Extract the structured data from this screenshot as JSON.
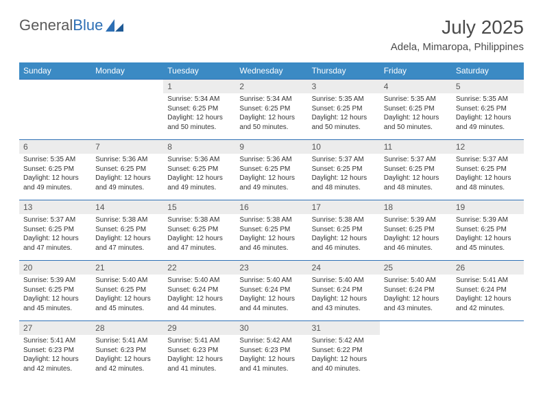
{
  "brand": {
    "part1": "General",
    "part2": "Blue"
  },
  "title": "July 2025",
  "location": "Adela, Mimaropa, Philippines",
  "colors": {
    "header_bg": "#3b8ac4",
    "header_text": "#ffffff",
    "cell_border": "#2d6fb5",
    "daynum_bg": "#ececec",
    "daynum_text": "#555555",
    "body_text": "#333333",
    "logo_gray": "#5a5a5a",
    "logo_blue": "#2d6fb5",
    "background": "#ffffff"
  },
  "fonts": {
    "month_title_pt": 28,
    "location_pt": 15,
    "weekday_pt": 12,
    "daynum_pt": 12,
    "cell_pt": 10
  },
  "weekdays": [
    "Sunday",
    "Monday",
    "Tuesday",
    "Wednesday",
    "Thursday",
    "Friday",
    "Saturday"
  ],
  "weeks": [
    [
      null,
      null,
      {
        "n": "1",
        "sr": "Sunrise: 5:34 AM",
        "ss": "Sunset: 6:25 PM",
        "d1": "Daylight: 12 hours",
        "d2": "and 50 minutes."
      },
      {
        "n": "2",
        "sr": "Sunrise: 5:34 AM",
        "ss": "Sunset: 6:25 PM",
        "d1": "Daylight: 12 hours",
        "d2": "and 50 minutes."
      },
      {
        "n": "3",
        "sr": "Sunrise: 5:35 AM",
        "ss": "Sunset: 6:25 PM",
        "d1": "Daylight: 12 hours",
        "d2": "and 50 minutes."
      },
      {
        "n": "4",
        "sr": "Sunrise: 5:35 AM",
        "ss": "Sunset: 6:25 PM",
        "d1": "Daylight: 12 hours",
        "d2": "and 50 minutes."
      },
      {
        "n": "5",
        "sr": "Sunrise: 5:35 AM",
        "ss": "Sunset: 6:25 PM",
        "d1": "Daylight: 12 hours",
        "d2": "and 49 minutes."
      }
    ],
    [
      {
        "n": "6",
        "sr": "Sunrise: 5:35 AM",
        "ss": "Sunset: 6:25 PM",
        "d1": "Daylight: 12 hours",
        "d2": "and 49 minutes."
      },
      {
        "n": "7",
        "sr": "Sunrise: 5:36 AM",
        "ss": "Sunset: 6:25 PM",
        "d1": "Daylight: 12 hours",
        "d2": "and 49 minutes."
      },
      {
        "n": "8",
        "sr": "Sunrise: 5:36 AM",
        "ss": "Sunset: 6:25 PM",
        "d1": "Daylight: 12 hours",
        "d2": "and 49 minutes."
      },
      {
        "n": "9",
        "sr": "Sunrise: 5:36 AM",
        "ss": "Sunset: 6:25 PM",
        "d1": "Daylight: 12 hours",
        "d2": "and 49 minutes."
      },
      {
        "n": "10",
        "sr": "Sunrise: 5:37 AM",
        "ss": "Sunset: 6:25 PM",
        "d1": "Daylight: 12 hours",
        "d2": "and 48 minutes."
      },
      {
        "n": "11",
        "sr": "Sunrise: 5:37 AM",
        "ss": "Sunset: 6:25 PM",
        "d1": "Daylight: 12 hours",
        "d2": "and 48 minutes."
      },
      {
        "n": "12",
        "sr": "Sunrise: 5:37 AM",
        "ss": "Sunset: 6:25 PM",
        "d1": "Daylight: 12 hours",
        "d2": "and 48 minutes."
      }
    ],
    [
      {
        "n": "13",
        "sr": "Sunrise: 5:37 AM",
        "ss": "Sunset: 6:25 PM",
        "d1": "Daylight: 12 hours",
        "d2": "and 47 minutes."
      },
      {
        "n": "14",
        "sr": "Sunrise: 5:38 AM",
        "ss": "Sunset: 6:25 PM",
        "d1": "Daylight: 12 hours",
        "d2": "and 47 minutes."
      },
      {
        "n": "15",
        "sr": "Sunrise: 5:38 AM",
        "ss": "Sunset: 6:25 PM",
        "d1": "Daylight: 12 hours",
        "d2": "and 47 minutes."
      },
      {
        "n": "16",
        "sr": "Sunrise: 5:38 AM",
        "ss": "Sunset: 6:25 PM",
        "d1": "Daylight: 12 hours",
        "d2": "and 46 minutes."
      },
      {
        "n": "17",
        "sr": "Sunrise: 5:38 AM",
        "ss": "Sunset: 6:25 PM",
        "d1": "Daylight: 12 hours",
        "d2": "and 46 minutes."
      },
      {
        "n": "18",
        "sr": "Sunrise: 5:39 AM",
        "ss": "Sunset: 6:25 PM",
        "d1": "Daylight: 12 hours",
        "d2": "and 46 minutes."
      },
      {
        "n": "19",
        "sr": "Sunrise: 5:39 AM",
        "ss": "Sunset: 6:25 PM",
        "d1": "Daylight: 12 hours",
        "d2": "and 45 minutes."
      }
    ],
    [
      {
        "n": "20",
        "sr": "Sunrise: 5:39 AM",
        "ss": "Sunset: 6:25 PM",
        "d1": "Daylight: 12 hours",
        "d2": "and 45 minutes."
      },
      {
        "n": "21",
        "sr": "Sunrise: 5:40 AM",
        "ss": "Sunset: 6:25 PM",
        "d1": "Daylight: 12 hours",
        "d2": "and 45 minutes."
      },
      {
        "n": "22",
        "sr": "Sunrise: 5:40 AM",
        "ss": "Sunset: 6:24 PM",
        "d1": "Daylight: 12 hours",
        "d2": "and 44 minutes."
      },
      {
        "n": "23",
        "sr": "Sunrise: 5:40 AM",
        "ss": "Sunset: 6:24 PM",
        "d1": "Daylight: 12 hours",
        "d2": "and 44 minutes."
      },
      {
        "n": "24",
        "sr": "Sunrise: 5:40 AM",
        "ss": "Sunset: 6:24 PM",
        "d1": "Daylight: 12 hours",
        "d2": "and 43 minutes."
      },
      {
        "n": "25",
        "sr": "Sunrise: 5:40 AM",
        "ss": "Sunset: 6:24 PM",
        "d1": "Daylight: 12 hours",
        "d2": "and 43 minutes."
      },
      {
        "n": "26",
        "sr": "Sunrise: 5:41 AM",
        "ss": "Sunset: 6:24 PM",
        "d1": "Daylight: 12 hours",
        "d2": "and 42 minutes."
      }
    ],
    [
      {
        "n": "27",
        "sr": "Sunrise: 5:41 AM",
        "ss": "Sunset: 6:23 PM",
        "d1": "Daylight: 12 hours",
        "d2": "and 42 minutes."
      },
      {
        "n": "28",
        "sr": "Sunrise: 5:41 AM",
        "ss": "Sunset: 6:23 PM",
        "d1": "Daylight: 12 hours",
        "d2": "and 42 minutes."
      },
      {
        "n": "29",
        "sr": "Sunrise: 5:41 AM",
        "ss": "Sunset: 6:23 PM",
        "d1": "Daylight: 12 hours",
        "d2": "and 41 minutes."
      },
      {
        "n": "30",
        "sr": "Sunrise: 5:42 AM",
        "ss": "Sunset: 6:23 PM",
        "d1": "Daylight: 12 hours",
        "d2": "and 41 minutes."
      },
      {
        "n": "31",
        "sr": "Sunrise: 5:42 AM",
        "ss": "Sunset: 6:22 PM",
        "d1": "Daylight: 12 hours",
        "d2": "and 40 minutes."
      },
      null,
      null
    ]
  ]
}
